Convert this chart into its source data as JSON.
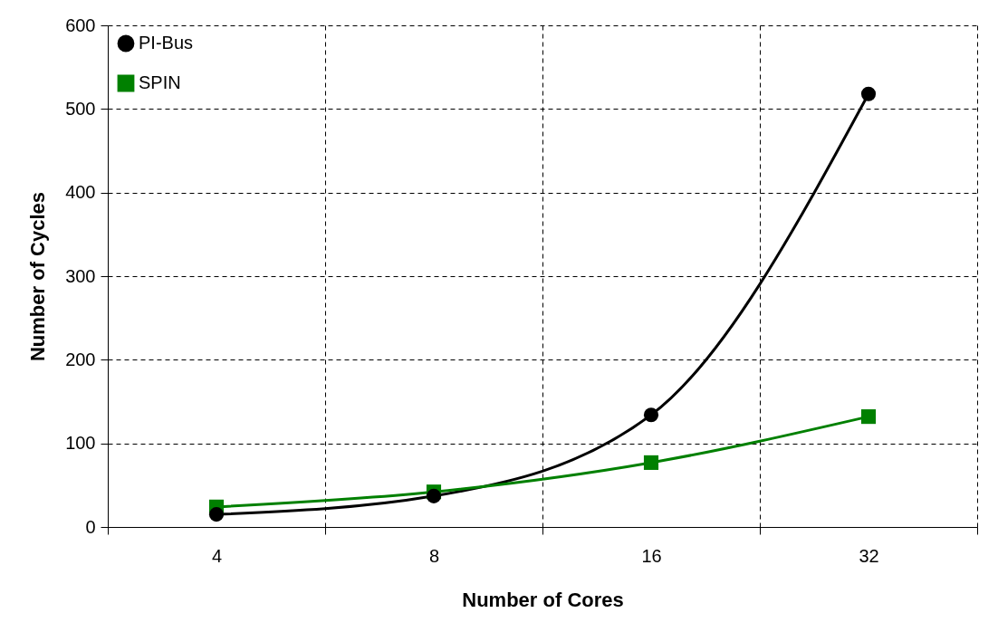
{
  "chart_data": {
    "type": "line",
    "xlabel": "Number of Cores",
    "ylabel": "Number of Cycles",
    "categories": [
      "4",
      "8",
      "16",
      "32"
    ],
    "series": [
      {
        "name": "PI-Bus",
        "color": "#000000",
        "marker": "circle",
        "values": [
          15,
          37,
          134,
          518
        ]
      },
      {
        "name": "SPIN",
        "color": "#008000",
        "marker": "square",
        "values": [
          24,
          42,
          77,
          132
        ]
      }
    ],
    "ylim": [
      0,
      600
    ],
    "yticks": [
      0,
      100,
      200,
      300,
      400,
      500,
      600
    ],
    "grid": true,
    "legend": "top left",
    "line_style": "solid"
  }
}
